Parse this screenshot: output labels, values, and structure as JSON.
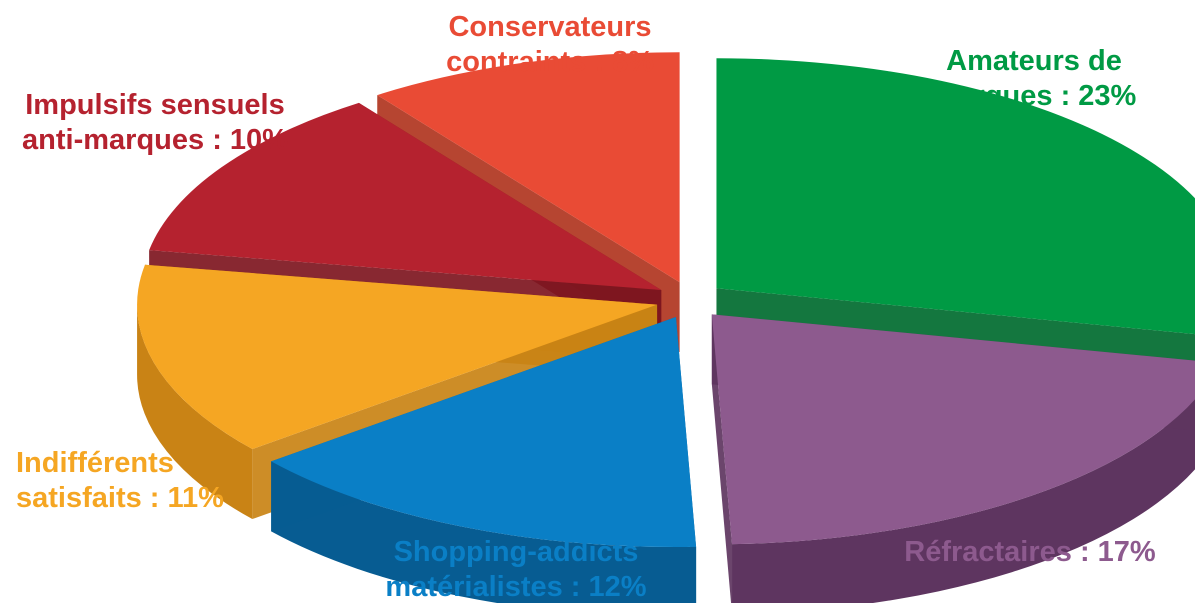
{
  "chart_data": {
    "type": "pie",
    "style": "3d-exploded",
    "slices": [
      {
        "label_line1": "Amateurs de",
        "label_line2": "marques : 23%",
        "name": "Amateurs de marques",
        "value": 23,
        "color": "#009a44",
        "side": "#006b2f"
      },
      {
        "label_line1": "Réfractaires : 17%",
        "label_line2": "",
        "name": "Réfractaires",
        "value": 17,
        "color": "#8d5a8e",
        "side": "#5e3560"
      },
      {
        "label_line1": "Shopping-addicts",
        "label_line2": "matérialistes : 12%",
        "name": "Shopping-addicts matérialistes",
        "value": 12,
        "color": "#0a7fc6",
        "side": "#075c92"
      },
      {
        "label_line1": "Indifférents",
        "label_line2": "satisfaits : 11%",
        "name": "Indifférents satisfaits",
        "value": 11,
        "color": "#f5a623",
        "side": "#c98315"
      },
      {
        "label_line1": "Impulsifs sensuels",
        "label_line2": "anti-marques : 10%",
        "name": "Impulsifs sensuels anti-marques",
        "value": 10,
        "color": "#b5222f",
        "side": "#7e1620"
      },
      {
        "label_line1": "Conservateurs",
        "label_line2": "contraints : 8%",
        "name": "Conservateurs contraints",
        "value": 8,
        "color": "#e94b35",
        "side": "#b0351f"
      }
    ]
  }
}
